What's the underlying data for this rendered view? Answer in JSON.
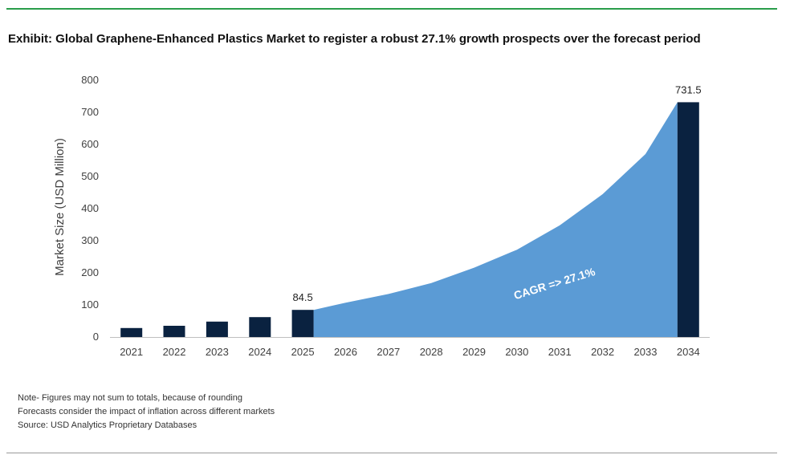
{
  "header": {
    "title": "Exhibit: Global Graphene-Enhanced Plastics Market to register a robust 27.1% growth prospects over the forecast period"
  },
  "notes": [
    "Note- Figures may not sum to totals, because of rounding",
    "Forecasts consider the impact of inflation across different markets",
    "Source: USD Analytics Proprietary Databases"
  ],
  "colors": {
    "bar": "#0a2240",
    "area": "#5b9bd5",
    "accent_rule": "#2a9d4a"
  },
  "chart_data": {
    "type": "bar",
    "categories": [
      "2021",
      "2022",
      "2023",
      "2024",
      "2025",
      "2026",
      "2027",
      "2028",
      "2029",
      "2030",
      "2031",
      "2032",
      "2033",
      "2034"
    ],
    "series": [
      {
        "kind": "bar",
        "values": [
          28,
          35,
          48,
          62,
          84.5,
          null,
          null,
          null,
          null,
          null,
          null,
          null,
          null,
          731.5
        ],
        "data_labels": {
          "2025": "84.5",
          "2034": "731.5"
        }
      },
      {
        "kind": "area",
        "values": [
          null,
          null,
          null,
          null,
          84.5,
          107,
          134,
          168,
          216,
          272,
          348,
          445,
          570,
          731.5
        ]
      }
    ],
    "ylabel": "Market Size (USD Million)",
    "xlabel": "",
    "ylim": [
      0,
      800
    ],
    "yticks": [
      0,
      100,
      200,
      300,
      400,
      500,
      600,
      700,
      800
    ],
    "grid": false,
    "annotation": "CAGR => 27.1%"
  }
}
